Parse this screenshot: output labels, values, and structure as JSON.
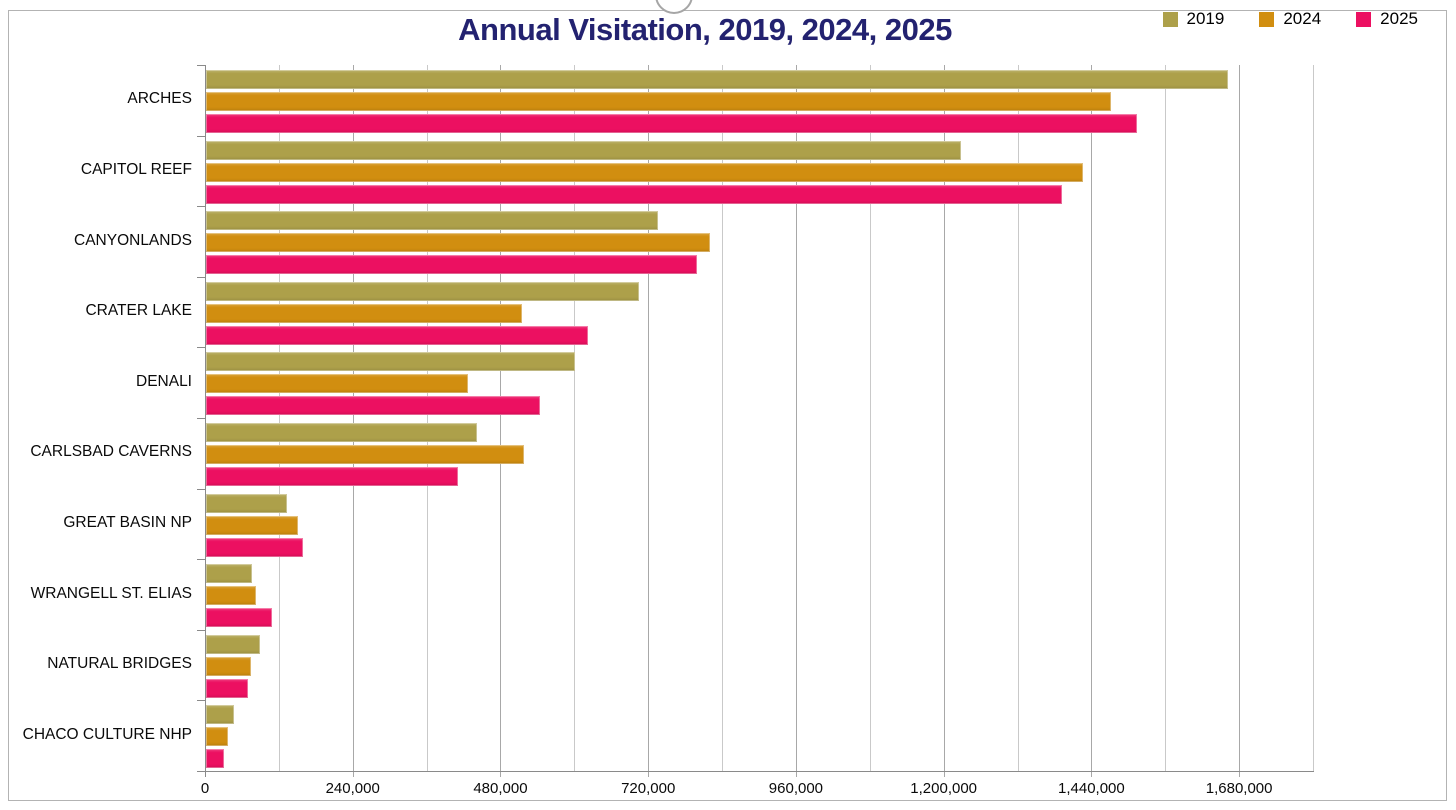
{
  "title_color": "#232270",
  "legend": [
    {
      "label": "2019",
      "color": "#ada04a"
    },
    {
      "label": "2024",
      "color": "#d18e10"
    },
    {
      "label": "2025",
      "color": "#ec1061"
    }
  ],
  "chart_data": {
    "type": "bar",
    "orientation": "horizontal",
    "title": "Annual Visitation, 2019, 2024, 2025",
    "xlabel": "",
    "ylabel": "",
    "categories": [
      "ARCHES",
      "CAPITOL REEF",
      "CANYONLANDS",
      "CRATER LAKE",
      "DENALI",
      "CARLSBAD CAVERNS",
      "GREAT BASIN NP",
      "WRANGELL ST. ELIAS",
      "NATURAL BRIDGES",
      "CHACO CULTURE NHP"
    ],
    "series": [
      {
        "name": "2019",
        "color": "#ada04a",
        "values": [
          1660000,
          1227000,
          734000,
          704000,
          600000,
          441000,
          131000,
          74000,
          87000,
          45000
        ]
      },
      {
        "name": "2024",
        "color": "#d18e10",
        "values": [
          1470000,
          1425000,
          818000,
          513000,
          425000,
          517000,
          150000,
          81000,
          73000,
          35000
        ]
      },
      {
        "name": "2025",
        "color": "#ec1061",
        "values": [
          1512000,
          1390000,
          797000,
          620000,
          542000,
          410000,
          158000,
          107000,
          68000,
          29000
        ]
      }
    ],
    "xlim": [
      0,
      1800000
    ],
    "x_major_tick": 240000,
    "x_minor_tick": 120000,
    "x_tick_labels": [
      "0",
      "240,000",
      "480,000",
      "720,000",
      "960,000",
      "1,200,000",
      "1,440,000",
      "1,680,000"
    ],
    "grid": true,
    "legend_position": "top-right",
    "colors": {
      "grid_minor": "#c9c9c9",
      "grid_major": "#a8a8a8",
      "axis": "#8a8a8a"
    }
  }
}
